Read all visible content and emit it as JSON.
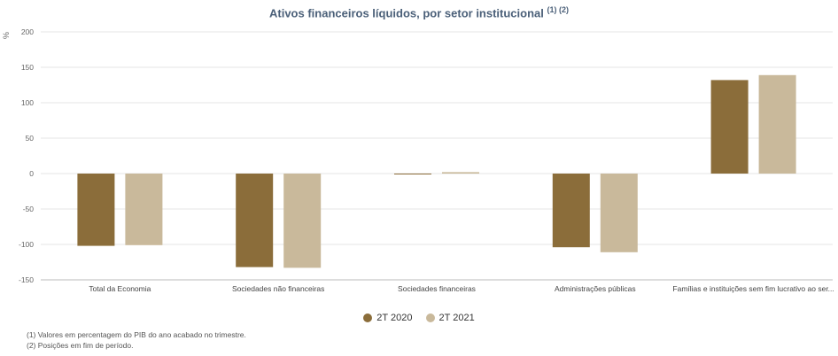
{
  "chart_data": {
    "type": "bar",
    "title": "Ativos financeiros líquidos, por setor institucional",
    "title_sup": "(1) (2)",
    "ylabel": "%",
    "ylim": [
      -150,
      200
    ],
    "yticks": [
      200,
      150,
      100,
      50,
      0,
      -50,
      -100,
      -150
    ],
    "categories": [
      "Total da Economia",
      "Sociedades não financeiras",
      "Sociedades financeiras",
      "Administrações públicas",
      "Famílias e instituições sem fim lucrativo ao ser..."
    ],
    "series": [
      {
        "name": "2T 2020",
        "color": "#8b6d3a",
        "values": [
          -102,
          -132,
          -1,
          -104,
          132
        ]
      },
      {
        "name": "2T 2021",
        "color": "#c9b99b",
        "values": [
          -101,
          -133,
          2,
          -111,
          139
        ]
      }
    ],
    "grid": true,
    "legend": "bottom"
  },
  "notes": [
    "(1) Valores em percentagem do PIB do ano acabado no trimestre.",
    "(2) Posições em fim de período."
  ]
}
